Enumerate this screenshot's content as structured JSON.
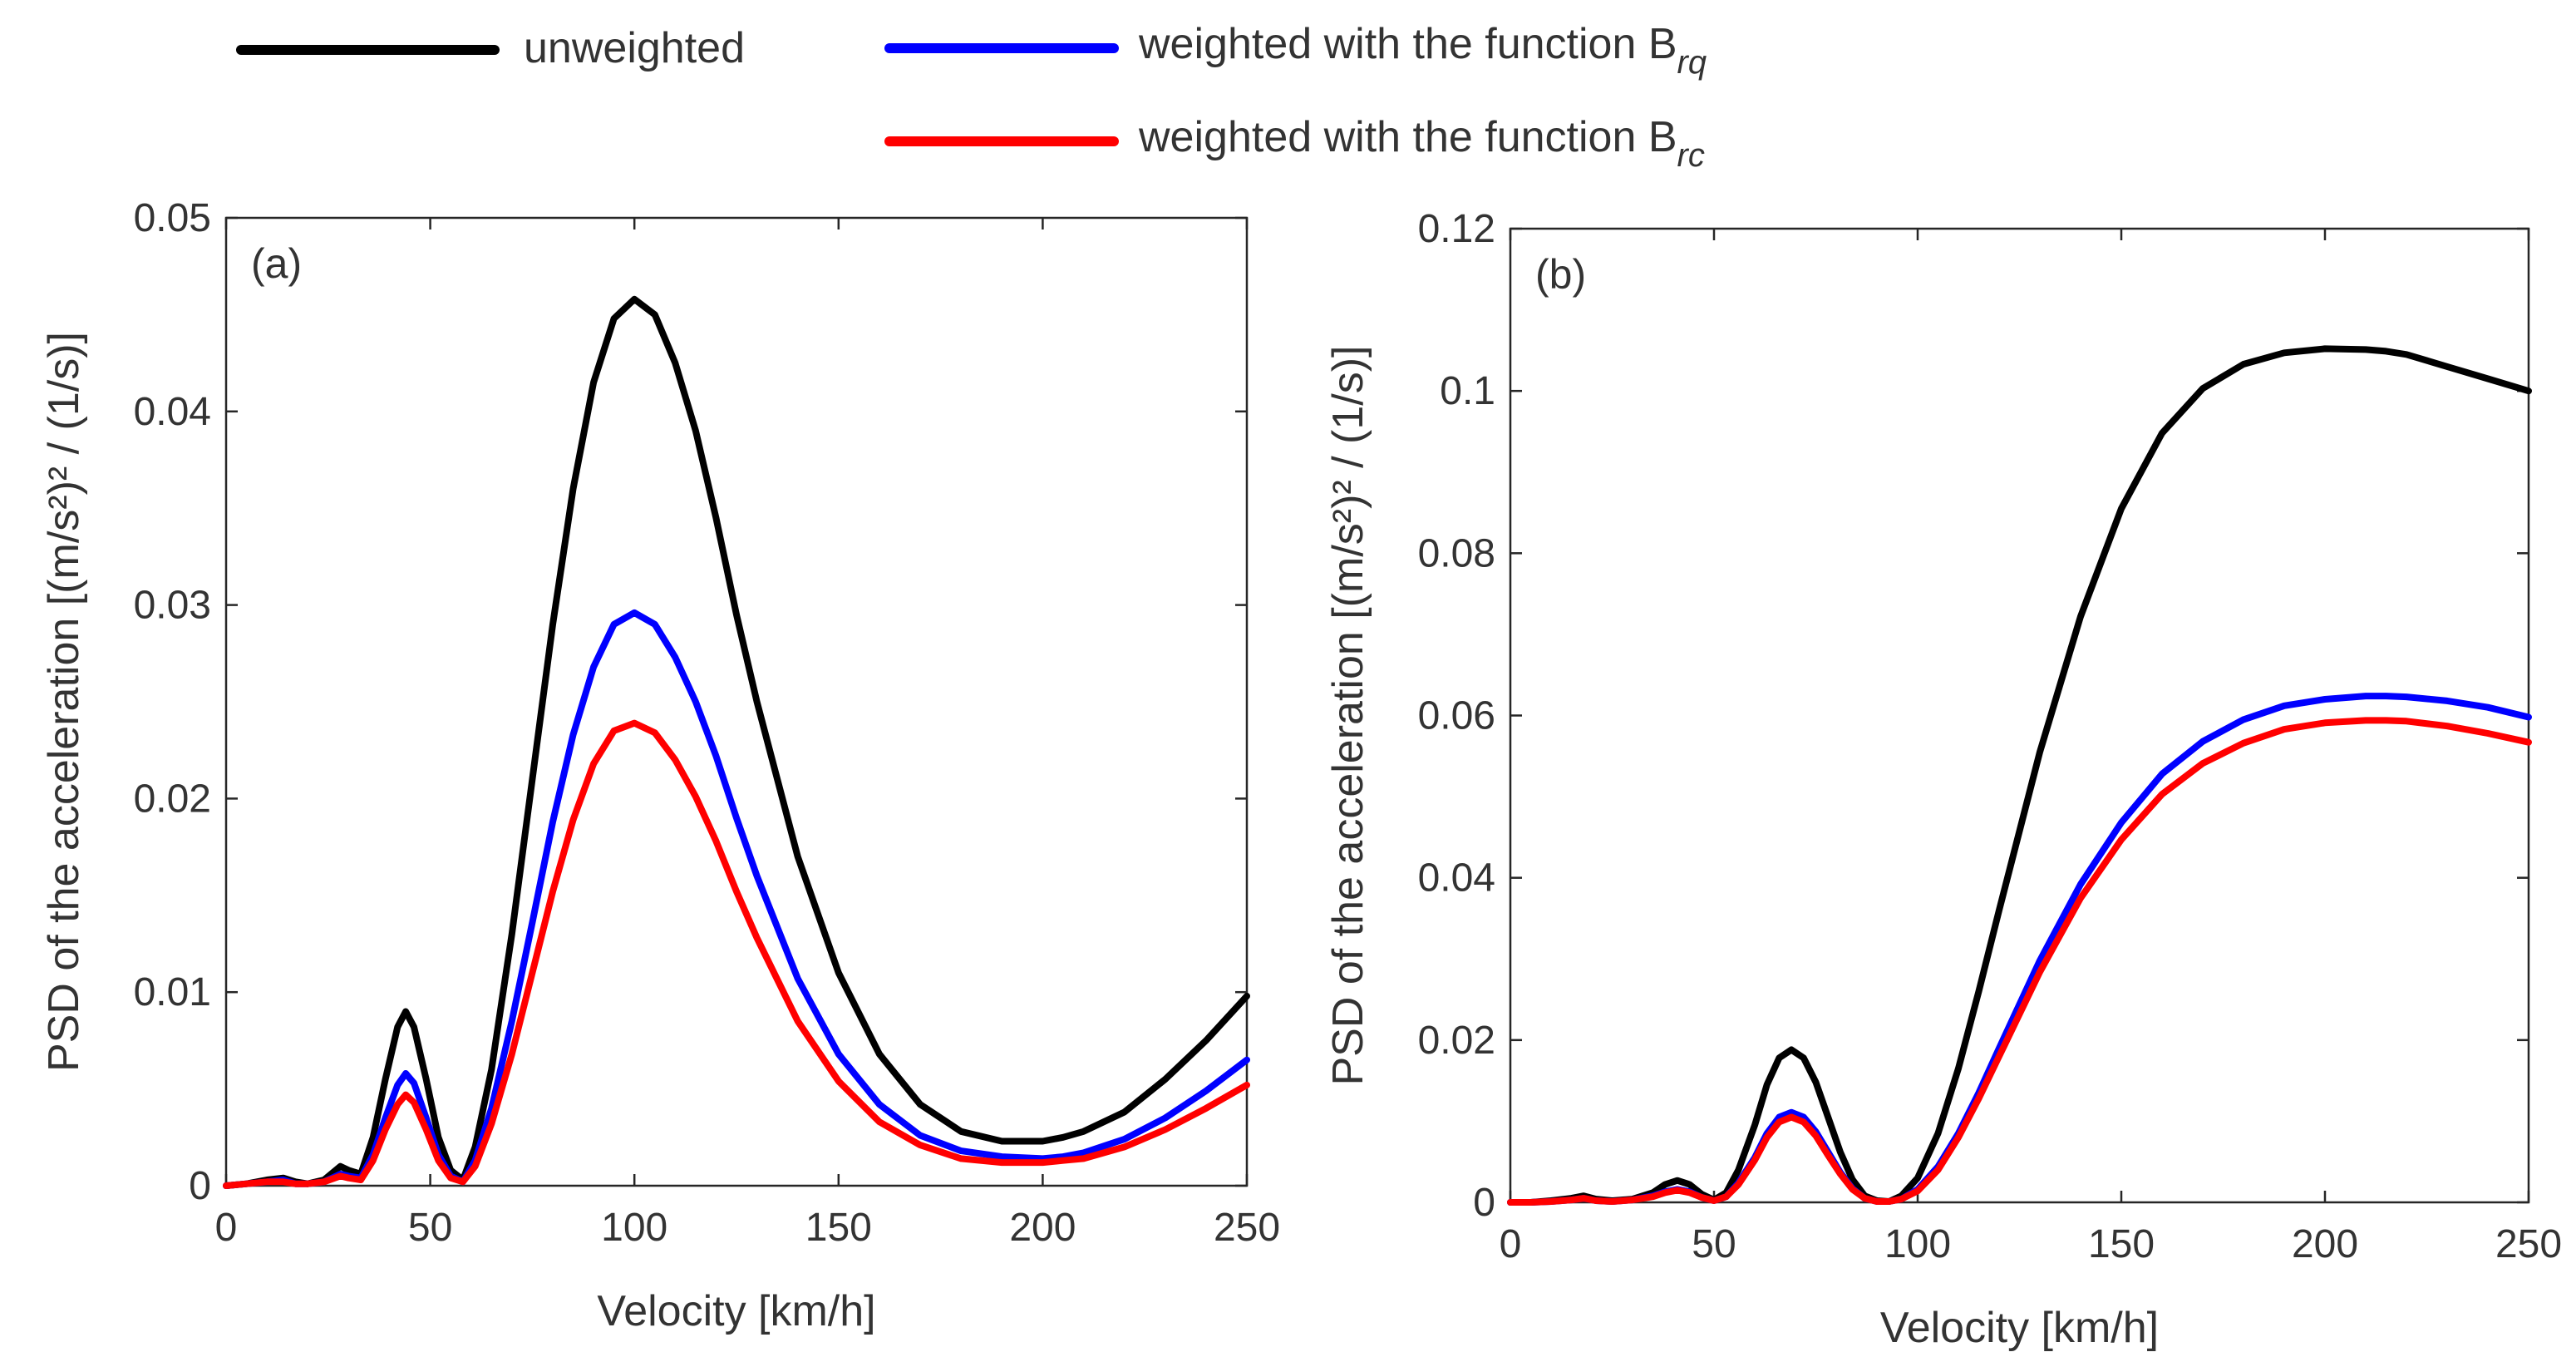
{
  "legend": {
    "items": [
      {
        "label": "unweighted",
        "sub": "",
        "color": "#000000"
      },
      {
        "label": "weighted with the function B",
        "sub": "rq",
        "color": "#0000ff"
      },
      {
        "label": "weighted with the function B",
        "sub": "rc",
        "color": "#ff0000"
      }
    ]
  },
  "chart_data": [
    {
      "type": "line",
      "panel_label": "(a)",
      "xlabel": "Velocity [km/h]",
      "ylabel": "PSD of the acceleration [(m/s²)² / (1/s)]",
      "xlim": [
        0,
        250
      ],
      "ylim": [
        0,
        0.05
      ],
      "xticks": [
        0,
        50,
        100,
        150,
        200,
        250
      ],
      "yticks": [
        0,
        0.01,
        0.02,
        0.03,
        0.04,
        0.05
      ],
      "xtick_labels": [
        "0",
        "50",
        "100",
        "150",
        "200",
        "250"
      ],
      "ytick_labels": [
        "0",
        "0.01",
        "0.02",
        "0.03",
        "0.04",
        "0.05"
      ],
      "grid": false,
      "x": [
        0,
        5,
        10,
        14,
        17,
        20,
        24,
        28,
        30,
        33,
        36,
        39,
        42,
        44,
        46,
        49,
        52,
        55,
        58,
        61,
        65,
        70,
        75,
        80,
        85,
        90,
        95,
        100,
        105,
        110,
        115,
        120,
        125,
        130,
        140,
        150,
        160,
        170,
        180,
        190,
        200,
        205,
        210,
        220,
        230,
        240,
        250
      ],
      "series": [
        {
          "name": "unweighted",
          "color": "#000000",
          "values": [
            0,
            0.0001,
            0.0003,
            0.0004,
            0.0002,
            0.0001,
            0.0003,
            0.001,
            0.0008,
            0.0006,
            0.0025,
            0.0055,
            0.0082,
            0.009,
            0.0082,
            0.0055,
            0.0025,
            0.0008,
            0.0003,
            0.002,
            0.006,
            0.013,
            0.021,
            0.029,
            0.036,
            0.0415,
            0.0448,
            0.0458,
            0.045,
            0.0425,
            0.039,
            0.0345,
            0.0295,
            0.025,
            0.017,
            0.011,
            0.0068,
            0.0042,
            0.0028,
            0.0023,
            0.0023,
            0.0025,
            0.0028,
            0.0038,
            0.0055,
            0.0075,
            0.0098
          ]
        },
        {
          "name": "weighted with the function Brq",
          "color": "#0000ff",
          "values": [
            0,
            0.0001,
            0.0002,
            0.0003,
            0.0001,
            0.0001,
            0.0002,
            0.0006,
            0.0005,
            0.0004,
            0.0016,
            0.0035,
            0.0052,
            0.0058,
            0.0053,
            0.0035,
            0.0016,
            0.0005,
            0.0002,
            0.0013,
            0.004,
            0.0085,
            0.0136,
            0.0188,
            0.0233,
            0.0268,
            0.029,
            0.0296,
            0.029,
            0.0273,
            0.025,
            0.0222,
            0.019,
            0.016,
            0.0107,
            0.0068,
            0.0042,
            0.0026,
            0.0018,
            0.0015,
            0.0014,
            0.0015,
            0.0017,
            0.0024,
            0.0035,
            0.0049,
            0.0065
          ]
        },
        {
          "name": "weighted with the function Brc",
          "color": "#ff0000",
          "values": [
            0,
            0.0001,
            0.0002,
            0.0002,
            0.0001,
            0.0001,
            0.0002,
            0.0005,
            0.0004,
            0.0003,
            0.0013,
            0.0029,
            0.0042,
            0.0047,
            0.0043,
            0.0029,
            0.0013,
            0.0004,
            0.0002,
            0.001,
            0.0032,
            0.0068,
            0.011,
            0.0152,
            0.0189,
            0.0218,
            0.0235,
            0.0239,
            0.0234,
            0.022,
            0.0201,
            0.0178,
            0.0152,
            0.0128,
            0.0085,
            0.0054,
            0.0033,
            0.0021,
            0.0014,
            0.0012,
            0.0012,
            0.0013,
            0.0014,
            0.002,
            0.0029,
            0.004,
            0.0052
          ]
        }
      ]
    },
    {
      "type": "line",
      "panel_label": "(b)",
      "xlabel": "Velocity [km/h]",
      "ylabel": "PSD of the acceleration [(m/s²)² / (1/s)]",
      "xlim": [
        0,
        250
      ],
      "ylim": [
        0,
        0.12
      ],
      "xticks": [
        0,
        50,
        100,
        150,
        200,
        250
      ],
      "yticks": [
        0,
        0.02,
        0.04,
        0.06,
        0.08,
        0.1,
        0.12
      ],
      "xtick_labels": [
        "0",
        "50",
        "100",
        "150",
        "200",
        "250"
      ],
      "ytick_labels": [
        "0",
        "0.02",
        "0.04",
        "0.06",
        "0.08",
        "0.1",
        "0.12"
      ],
      "grid": false,
      "x": [
        0,
        5,
        10,
        15,
        18,
        21,
        25,
        30,
        35,
        38,
        41,
        44,
        47,
        50,
        53,
        56,
        60,
        63,
        66,
        69,
        72,
        75,
        78,
        81,
        84,
        87,
        90,
        93,
        96,
        100,
        105,
        110,
        115,
        120,
        130,
        140,
        150,
        160,
        170,
        180,
        190,
        200,
        210,
        215,
        220,
        230,
        240,
        250
      ],
      "series": [
        {
          "name": "unweighted",
          "color": "#000000",
          "values": [
            0,
            0,
            0.0002,
            0.0005,
            0.0008,
            0.0004,
            0.0002,
            0.0004,
            0.0012,
            0.0022,
            0.0027,
            0.0022,
            0.001,
            0.0003,
            0.0012,
            0.004,
            0.0095,
            0.0145,
            0.0178,
            0.0188,
            0.0178,
            0.0148,
            0.0105,
            0.0062,
            0.0028,
            0.0008,
            0.0002,
            0.0001,
            0.0008,
            0.003,
            0.0085,
            0.0165,
            0.026,
            0.036,
            0.0555,
            0.0722,
            0.0855,
            0.0948,
            0.1003,
            0.1033,
            0.1047,
            0.1052,
            0.1051,
            0.1049,
            0.1045,
            0.103,
            0.1015,
            0.1
          ]
        },
        {
          "name": "weighted with the function Brq",
          "color": "#0000ff",
          "values": [
            0,
            0,
            0.0001,
            0.0003,
            0.0005,
            0.0002,
            0.0001,
            0.0003,
            0.0008,
            0.0013,
            0.0016,
            0.0013,
            0.0006,
            0.0002,
            0.0007,
            0.0024,
            0.0055,
            0.0085,
            0.0105,
            0.0111,
            0.0105,
            0.0087,
            0.0062,
            0.0037,
            0.0017,
            0.0005,
            0.0001,
            0.0001,
            0.0004,
            0.0016,
            0.0044,
            0.0085,
            0.0135,
            0.019,
            0.0298,
            0.0392,
            0.0468,
            0.0528,
            0.0568,
            0.0595,
            0.0612,
            0.062,
            0.0624,
            0.0624,
            0.0623,
            0.0618,
            0.061,
            0.0598
          ]
        },
        {
          "name": "weighted with the function Brc",
          "color": "#ff0000",
          "values": [
            0,
            0,
            0.0001,
            0.0003,
            0.0005,
            0.0002,
            0.0001,
            0.0003,
            0.0007,
            0.0012,
            0.0015,
            0.0012,
            0.0006,
            0.0002,
            0.0007,
            0.0022,
            0.0052,
            0.008,
            0.0099,
            0.0105,
            0.0099,
            0.0082,
            0.0058,
            0.0035,
            0.0016,
            0.0005,
            0.0001,
            0.0001,
            0.0004,
            0.0014,
            0.004,
            0.008,
            0.0128,
            0.018,
            0.0284,
            0.0375,
            0.0447,
            0.0503,
            0.0541,
            0.0566,
            0.0583,
            0.0591,
            0.0594,
            0.0594,
            0.0593,
            0.0587,
            0.0578,
            0.0567
          ]
        }
      ]
    }
  ]
}
